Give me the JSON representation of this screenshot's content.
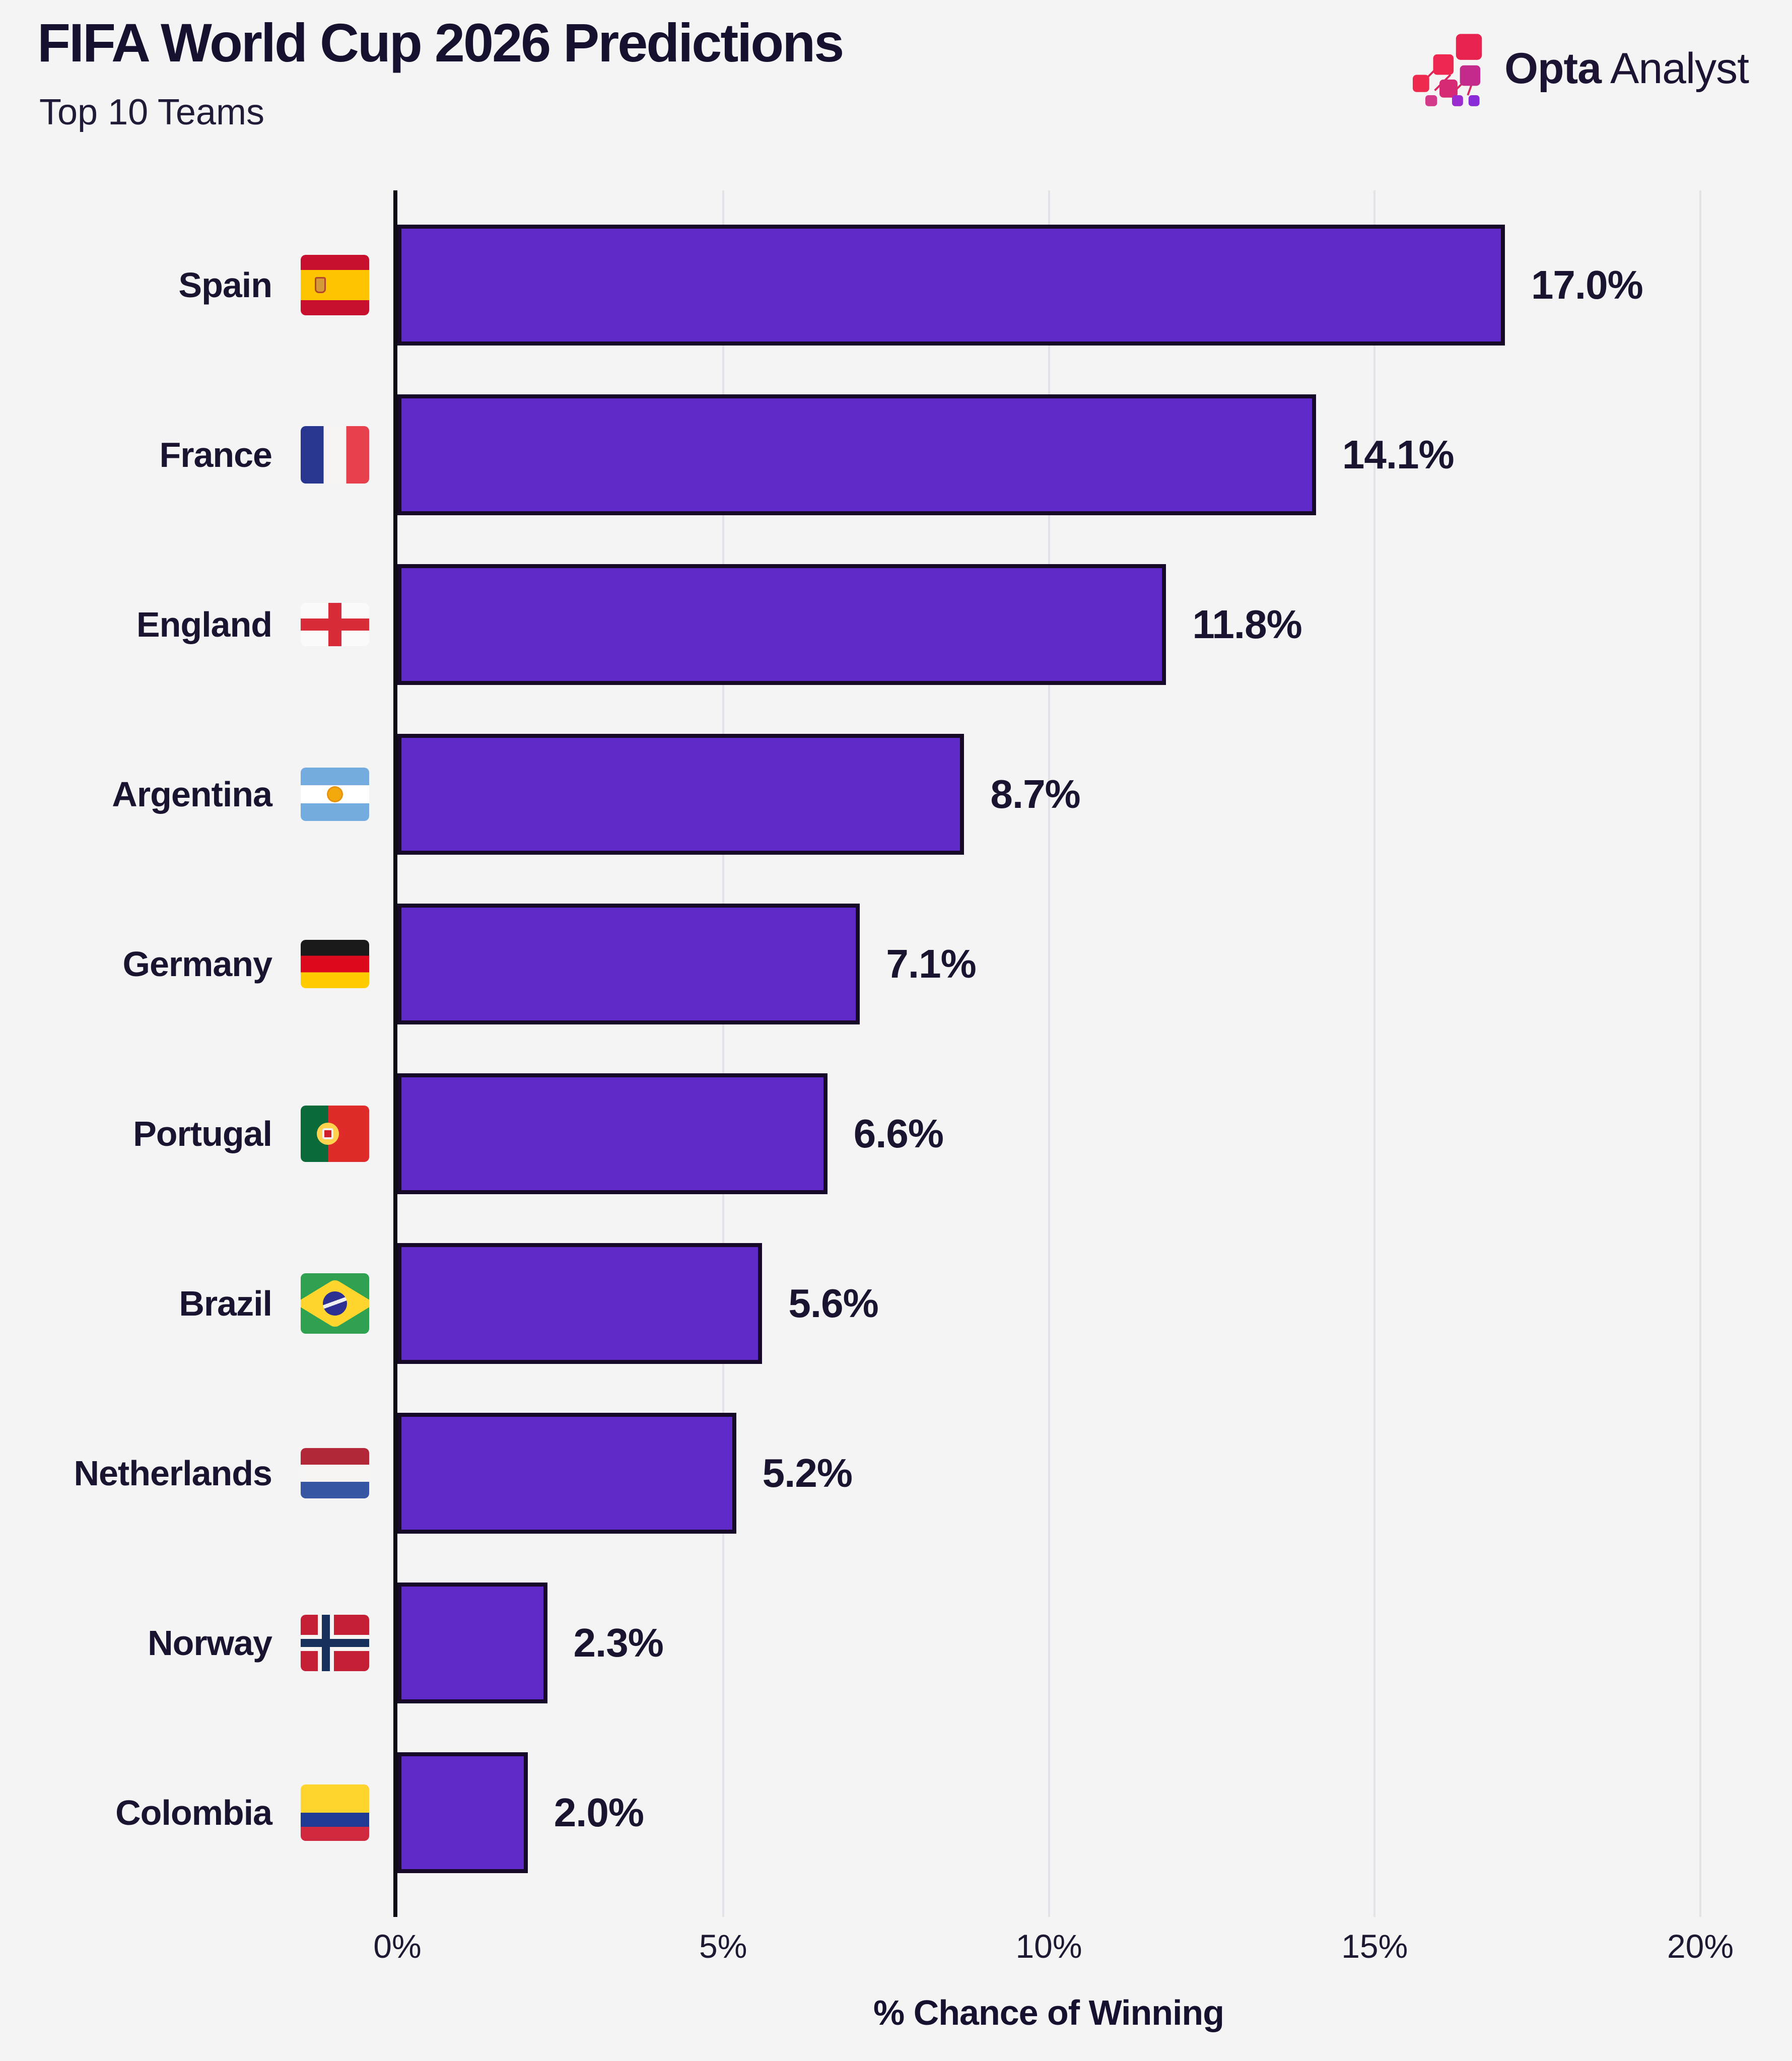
{
  "title": "FIFA World Cup 2026 Predictions",
  "subtitle": "Top 10 Teams",
  "logo": {
    "name_bold": "Opta",
    "name_light": "Analyst"
  },
  "chart_data": {
    "type": "bar",
    "orientation": "horizontal",
    "title": "FIFA World Cup 2026 Predictions",
    "subtitle": "Top 10 Teams",
    "categories": [
      "Spain",
      "France",
      "England",
      "Argentina",
      "Germany",
      "Portugal",
      "Brazil",
      "Netherlands",
      "Norway",
      "Colombia"
    ],
    "values": [
      17.0,
      14.1,
      11.8,
      8.7,
      7.1,
      6.6,
      5.6,
      5.2,
      2.3,
      2.0
    ],
    "value_labels": [
      "17.0%",
      "14.1%",
      "11.8%",
      "8.7%",
      "7.1%",
      "6.6%",
      "5.6%",
      "5.2%",
      "2.3%",
      "2.0%"
    ],
    "flags": [
      "spain",
      "france",
      "england",
      "argentina",
      "germany",
      "portugal",
      "brazil",
      "netherlands",
      "norway",
      "colombia"
    ],
    "xlabel": "% Chance of Winning",
    "x_ticks": [
      "0%",
      "5%",
      "10%",
      "15%",
      "20%"
    ],
    "x_tick_values": [
      0,
      5,
      10,
      15,
      20
    ],
    "xlim": [
      0,
      20
    ],
    "grid": true,
    "legend": "none",
    "colors": {
      "bar": "#5f2ac8",
      "bar_border": "#160a28",
      "axis": "#0d0a18",
      "gridline": "#e4e2e8",
      "background": "#f5f4f4",
      "text": "#1b1430"
    }
  }
}
